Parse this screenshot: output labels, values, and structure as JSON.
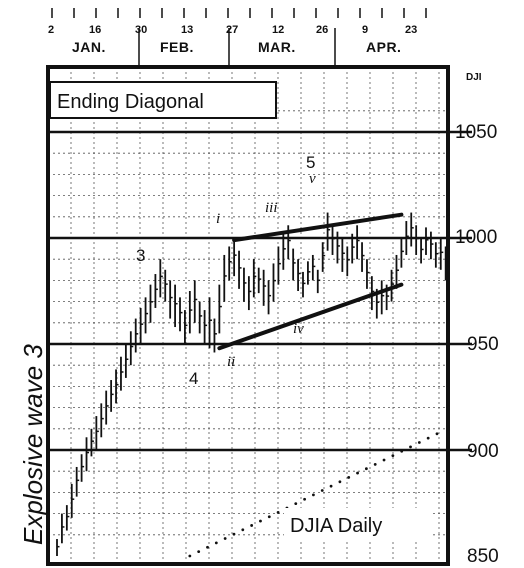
{
  "chart_data": {
    "type": "bar",
    "subtype": "ohlc-price-bars",
    "title": "Ending Diagonal",
    "series_label": "DJIA Daily",
    "side_label": "Explosive wave 3",
    "y_unit": "DJI",
    "ylim": [
      850,
      1070
    ],
    "yticks": [
      850,
      900,
      950,
      1000,
      1050
    ],
    "x_months": [
      "JAN.",
      "FEB.",
      "MAR.",
      "APR."
    ],
    "x_day_labels": [
      "2",
      "16",
      "30",
      "13",
      "27",
      "12",
      "26",
      "9",
      "23"
    ],
    "grid": true,
    "bars": [
      {
        "h": 858,
        "l": 850
      },
      {
        "h": 870,
        "l": 856
      },
      {
        "h": 874,
        "l": 862
      },
      {
        "h": 884,
        "l": 868
      },
      {
        "h": 892,
        "l": 878
      },
      {
        "h": 898,
        "l": 885
      },
      {
        "h": 906,
        "l": 890
      },
      {
        "h": 910,
        "l": 897
      },
      {
        "h": 916,
        "l": 900
      },
      {
        "h": 922,
        "l": 906
      },
      {
        "h": 928,
        "l": 912
      },
      {
        "h": 933,
        "l": 918
      },
      {
        "h": 938,
        "l": 922
      },
      {
        "h": 944,
        "l": 928
      },
      {
        "h": 950,
        "l": 934
      },
      {
        "h": 956,
        "l": 940
      },
      {
        "h": 962,
        "l": 946
      },
      {
        "h": 967,
        "l": 950
      },
      {
        "h": 972,
        "l": 955
      },
      {
        "h": 978,
        "l": 960
      },
      {
        "h": 983,
        "l": 967
      },
      {
        "h": 990,
        "l": 972
      },
      {
        "h": 985,
        "l": 970
      },
      {
        "h": 980,
        "l": 962
      },
      {
        "h": 978,
        "l": 958
      },
      {
        "h": 972,
        "l": 956
      },
      {
        "h": 966,
        "l": 950
      },
      {
        "h": 975,
        "l": 955
      },
      {
        "h": 980,
        "l": 960
      },
      {
        "h": 970,
        "l": 955
      },
      {
        "h": 966,
        "l": 950
      },
      {
        "h": 972,
        "l": 948
      },
      {
        "h": 962,
        "l": 946
      },
      {
        "h": 978,
        "l": 955
      },
      {
        "h": 992,
        "l": 970
      },
      {
        "h": 996,
        "l": 980
      },
      {
        "h": 1000,
        "l": 982
      },
      {
        "h": 994,
        "l": 976
      },
      {
        "h": 986,
        "l": 970
      },
      {
        "h": 982,
        "l": 966
      },
      {
        "h": 990,
        "l": 972
      },
      {
        "h": 986,
        "l": 974
      },
      {
        "h": 985,
        "l": 968
      },
      {
        "h": 980,
        "l": 964
      },
      {
        "h": 988,
        "l": 970
      },
      {
        "h": 996,
        "l": 978
      },
      {
        "h": 1003,
        "l": 985
      },
      {
        "h": 1006,
        "l": 990
      },
      {
        "h": 995,
        "l": 980
      },
      {
        "h": 990,
        "l": 975
      },
      {
        "h": 984,
        "l": 972
      },
      {
        "h": 989,
        "l": 978
      },
      {
        "h": 992,
        "l": 980
      },
      {
        "h": 985,
        "l": 974
      },
      {
        "h": 998,
        "l": 984
      },
      {
        "h": 1012,
        "l": 994
      },
      {
        "h": 1006,
        "l": 992
      },
      {
        "h": 1003,
        "l": 988
      },
      {
        "h": 1000,
        "l": 984
      },
      {
        "h": 996,
        "l": 982
      },
      {
        "h": 1002,
        "l": 988
      },
      {
        "h": 1006,
        "l": 990
      },
      {
        "h": 998,
        "l": 984
      },
      {
        "h": 990,
        "l": 976
      },
      {
        "h": 982,
        "l": 966
      },
      {
        "h": 976,
        "l": 962
      },
      {
        "h": 980,
        "l": 964
      },
      {
        "h": 978,
        "l": 966
      },
      {
        "h": 985,
        "l": 970
      },
      {
        "h": 992,
        "l": 976
      },
      {
        "h": 1000,
        "l": 986
      },
      {
        "h": 1008,
        "l": 992
      },
      {
        "h": 1012,
        "l": 996
      },
      {
        "h": 1006,
        "l": 992
      },
      {
        "h": 1000,
        "l": 988
      },
      {
        "h": 1005,
        "l": 992
      },
      {
        "h": 1003,
        "l": 990
      },
      {
        "h": 998,
        "l": 986
      },
      {
        "h": 1000,
        "l": 985
      },
      {
        "h": 996,
        "l": 980
      }
    ],
    "trendlines": [
      {
        "name": "upper",
        "from": [
          36,
          999
        ],
        "to": [
          70,
          1011
        ]
      },
      {
        "name": "lower",
        "from": [
          33,
          948
        ],
        "to": [
          70,
          978
        ]
      }
    ],
    "moving_average_dots": {
      "from": [
        27,
        850
      ],
      "to": [
        88,
        920
      ]
    },
    "wave_labels": [
      "3",
      "4",
      "5",
      "v",
      "i",
      "ii",
      "iii",
      "iv"
    ]
  }
}
